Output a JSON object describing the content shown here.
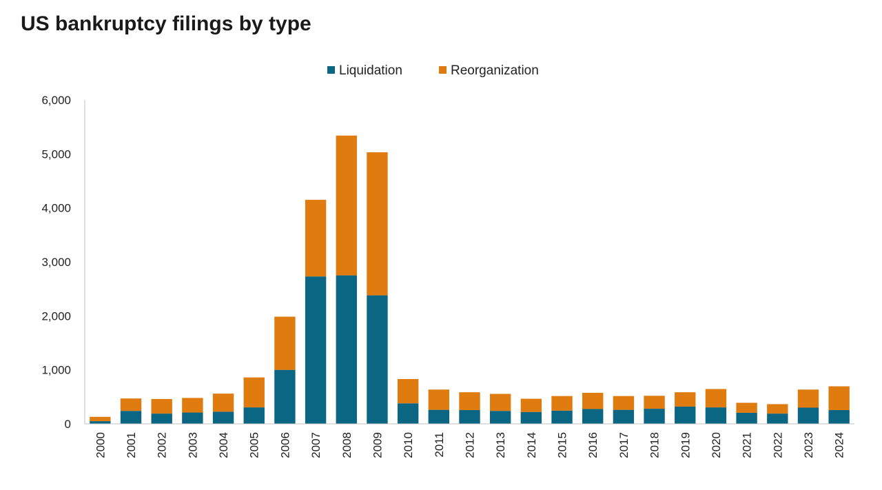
{
  "chart_data": {
    "type": "bar",
    "stacked": true,
    "title": "US bankruptcy filings by type",
    "xlabel": "",
    "ylabel": "",
    "ylim": [
      0,
      6000
    ],
    "yticks": [
      "0",
      "1,000",
      "2,000",
      "3,000",
      "4,000",
      "5,000",
      "6,000"
    ],
    "ytick_values": [
      0,
      1000,
      2000,
      3000,
      4000,
      5000,
      6000
    ],
    "grid": false,
    "legend_position": "top-center",
    "categories": [
      "2000",
      "2001",
      "2002",
      "2003",
      "2004",
      "2005",
      "2006",
      "2007",
      "2008",
      "2009",
      "2010",
      "2011",
      "2012",
      "2013",
      "2014",
      "2015",
      "2016",
      "2017",
      "2018",
      "2019",
      "2020",
      "2021",
      "2022",
      "2023",
      "2024"
    ],
    "series": [
      {
        "name": "Liquidation",
        "color": "#0b6683",
        "values": [
          50,
          240,
          190,
          210,
          225,
          305,
          1000,
          2730,
          2750,
          2380,
          380,
          260,
          255,
          240,
          220,
          245,
          275,
          260,
          280,
          320,
          305,
          205,
          190,
          300,
          255
        ]
      },
      {
        "name": "Reorganization",
        "color": "#e07b0f",
        "values": [
          80,
          230,
          270,
          270,
          335,
          555,
          985,
          1420,
          2590,
          2650,
          450,
          375,
          330,
          315,
          245,
          270,
          300,
          255,
          240,
          265,
          340,
          185,
          175,
          335,
          440
        ]
      }
    ]
  }
}
